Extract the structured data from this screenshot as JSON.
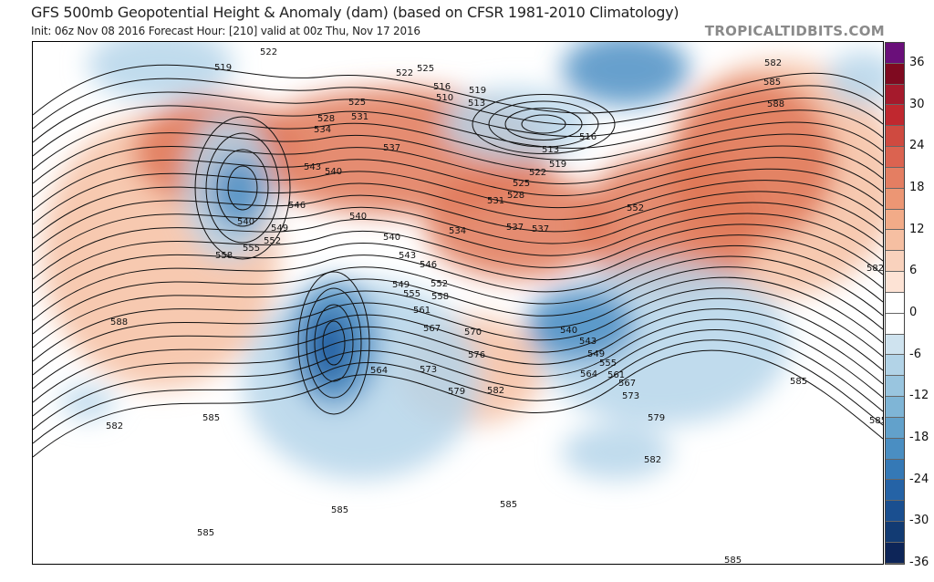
{
  "header": {
    "title": "GFS 500mb Geopotential Height & Anomaly (dam) (based on CFSR 1981-2010 Climatology)",
    "subtitle": "Init: 06z Nov 08 2016   Forecast Hour: [210]   valid at 00z Thu, Nov 17 2016",
    "brand": "TROPICALTIDBITS.COM"
  },
  "colorbar": {
    "ticks": [
      "36",
      "30",
      "24",
      "18",
      "12",
      "6",
      "0",
      "-6",
      "-12",
      "-18",
      "-24",
      "-30",
      "-36"
    ],
    "colors": [
      "#6a0f7a",
      "#7f0a20",
      "#a51a2c",
      "#c0282f",
      "#cf4a40",
      "#db6350",
      "#e47e62",
      "#ec9674",
      "#f2ab88",
      "#f6bfa2",
      "#f9d2bd",
      "#fde3d5",
      "#ffffff",
      "#ffffff",
      "#cfe3ef",
      "#b2d3e7",
      "#99c5df",
      "#7fb5d6",
      "#62a1cb",
      "#4a8ec2",
      "#3579b6",
      "#2563a6",
      "#1a4f90",
      "#123b73",
      "#0d2558"
    ]
  },
  "map": {
    "anomaly_colors": {
      "positive": "#e07858",
      "positive_light": "#f6c0a2",
      "negative": "#4c8fc4",
      "negative_light": "#b5d5ea",
      "negative_deep": "#1d5a9e"
    },
    "contour_labels": [
      "519",
      "522",
      "522",
      "525",
      "516",
      "510",
      "519",
      "513",
      "525",
      "528",
      "531",
      "534",
      "537",
      "543",
      "540",
      "546",
      "540",
      "549",
      "552",
      "555",
      "558",
      "540",
      "540",
      "543",
      "546",
      "549",
      "552",
      "555",
      "558",
      "561",
      "567",
      "570",
      "576",
      "573",
      "564",
      "579",
      "582",
      "534",
      "537",
      "537",
      "531",
      "528",
      "525",
      "522",
      "519",
      "513",
      "516",
      "552",
      "582",
      "585",
      "588",
      "582",
      "588",
      "582",
      "585",
      "585",
      "585",
      "585",
      "579",
      "582",
      "573",
      "567",
      "561",
      "564",
      "555",
      "549",
      "543",
      "540",
      "585",
      "585",
      "585"
    ]
  }
}
